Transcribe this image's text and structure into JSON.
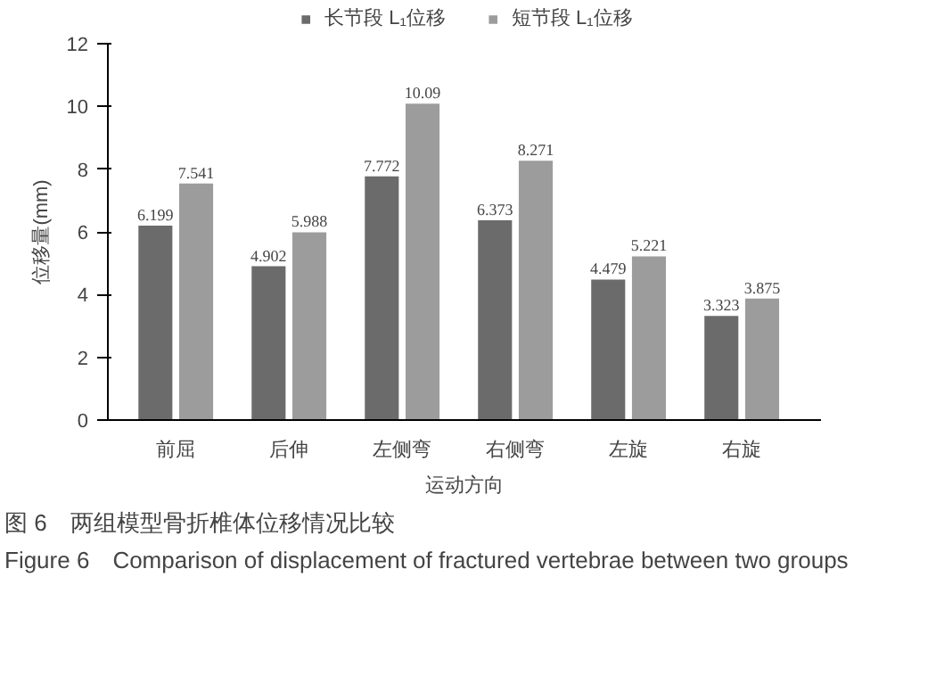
{
  "chart_data": {
    "type": "bar",
    "xlabel": "运动方向",
    "ylabel": "位移量(mm)",
    "categories": [
      "前屈",
      "后伸",
      "左侧弯",
      "右侧弯",
      "左旋",
      "右旋"
    ],
    "series": [
      {
        "name": "长节段 L₁位移",
        "color": "#6b6b6b",
        "values": [
          6.199,
          4.902,
          7.772,
          6.373,
          4.479,
          3.323
        ]
      },
      {
        "name": "短节段 L₁位移",
        "color": "#9c9c9c",
        "values": [
          7.541,
          5.988,
          10.09,
          8.271,
          5.221,
          3.875
        ]
      }
    ],
    "ylim": [
      0,
      12
    ],
    "yticks": [
      0,
      2,
      4,
      6,
      8,
      10,
      12
    ],
    "grid": false,
    "legend": "top",
    "data_labels": true,
    "annotations": [
      "图 6　两组模型骨折椎体位移情况比较",
      "Figure 6　Comparison of displacement of fractured vertebrae between two groups"
    ]
  }
}
